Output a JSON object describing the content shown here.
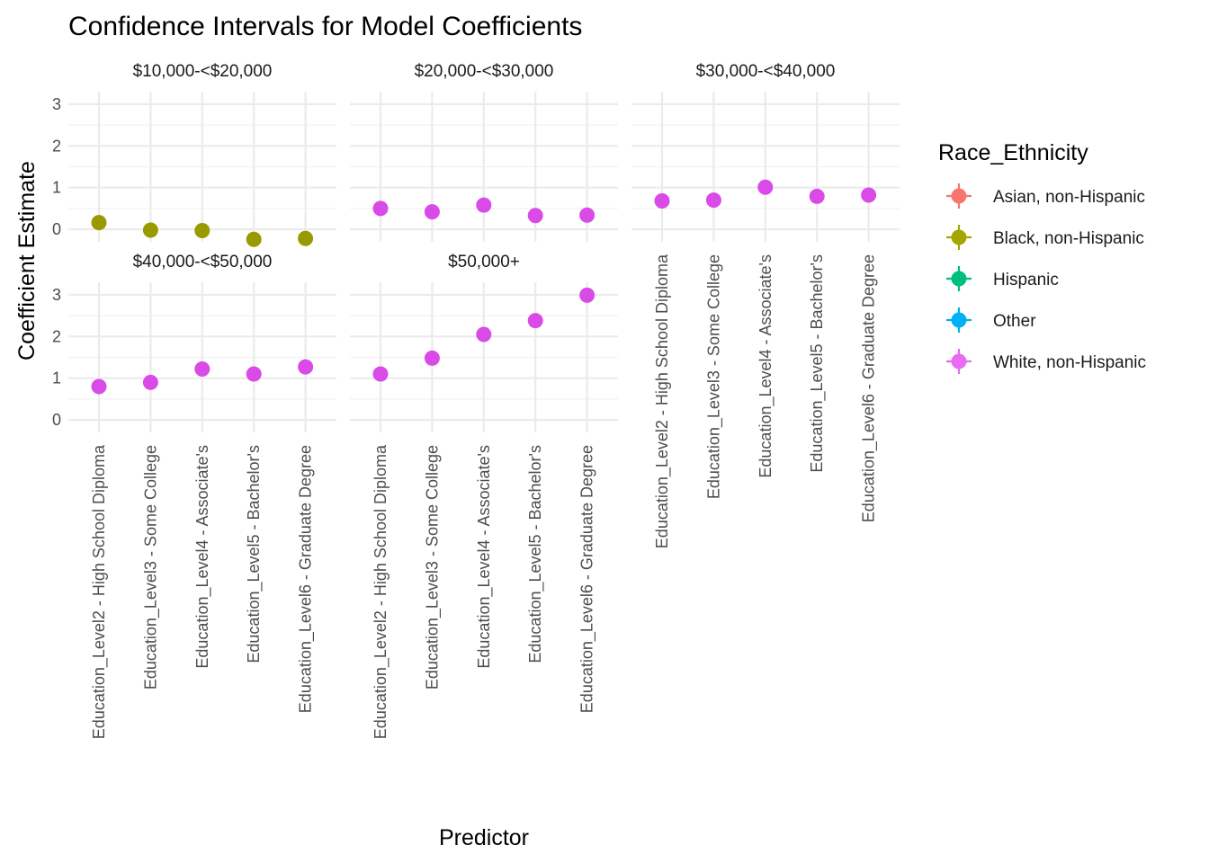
{
  "chart_data": {
    "type": "scatter",
    "title": "Confidence Intervals for Model Coefficients",
    "xlabel": "Predictor",
    "ylabel": "Coefficient Estimate",
    "ylim": [
      -0.3,
      3.3
    ],
    "yticks": [
      0,
      1,
      2,
      3
    ],
    "grid": true,
    "categories": [
      "Education_Level2 - High School Diploma",
      "Education_Level3 - Some College",
      "Education_Level4 - Associate's",
      "Education_Level5 - Bachelor's",
      "Education_Level6 - Graduate Degree"
    ],
    "legend": {
      "title": "Race_Ethnicity",
      "placement": "right",
      "entries": [
        {
          "name": "Asian, non-Hispanic",
          "color": "#F8766D"
        },
        {
          "name": "Black, non-Hispanic",
          "color": "#A3A500"
        },
        {
          "name": "Hispanic",
          "color": "#00BF7D"
        },
        {
          "name": "Other",
          "color": "#00B0F6"
        },
        {
          "name": "White, non-Hispanic",
          "color": "#E76BF3"
        }
      ]
    },
    "facets": [
      {
        "label": "$10,000-<$20,000",
        "series": "Black, non-Hispanic",
        "color": "#999900",
        "values": [
          0.16,
          -0.02,
          -0.03,
          -0.24,
          -0.22
        ]
      },
      {
        "label": "$20,000-<$30,000",
        "series": "White, non-Hispanic",
        "color": "#D94AE6",
        "values": [
          0.5,
          0.42,
          0.58,
          0.33,
          0.34
        ]
      },
      {
        "label": "$30,000-<$40,000",
        "series": "White, non-Hispanic",
        "color": "#D94AE6",
        "values": [
          0.68,
          0.7,
          1.01,
          0.79,
          0.82
        ]
      },
      {
        "label": "$40,000-<$50,000",
        "series": "White, non-Hispanic",
        "color": "#D94AE6",
        "values": [
          0.8,
          0.9,
          1.22,
          1.1,
          1.27
        ]
      },
      {
        "label": "$50,000+",
        "series": "White, non-Hispanic",
        "color": "#D94AE6",
        "values": [
          1.1,
          1.48,
          2.05,
          2.38,
          2.99
        ]
      }
    ]
  }
}
